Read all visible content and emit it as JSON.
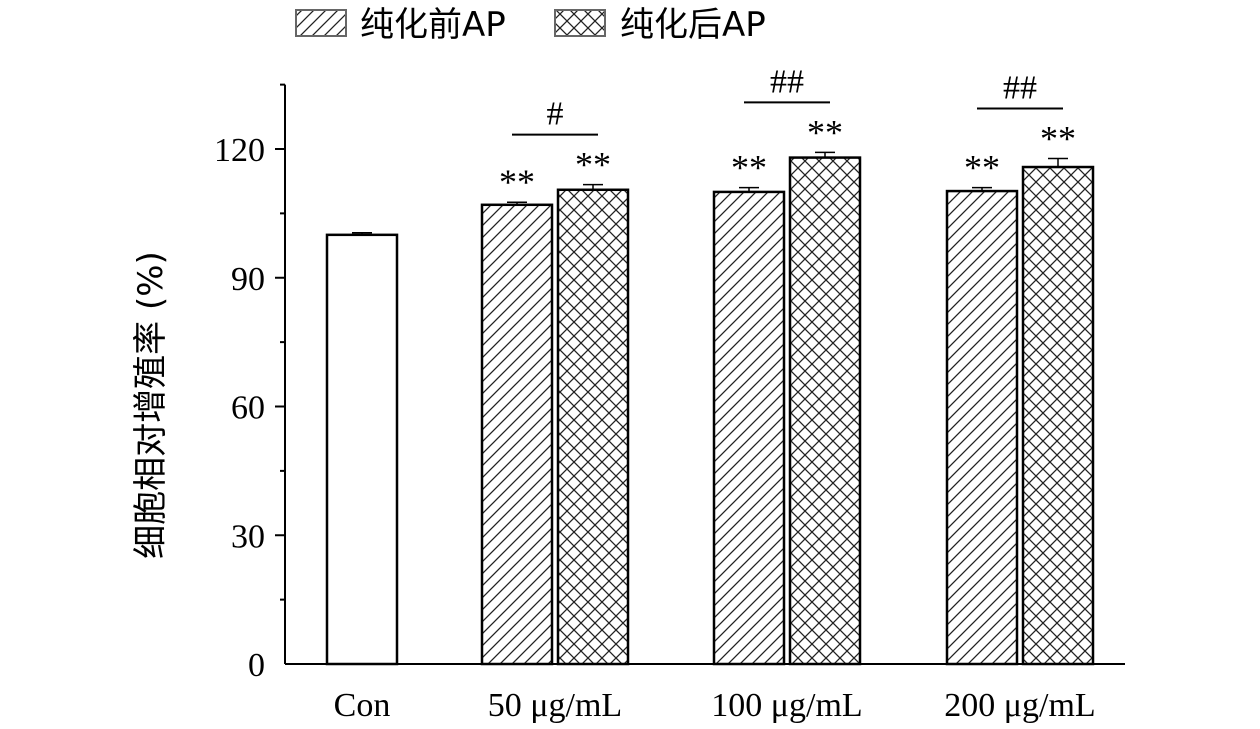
{
  "chart_data": {
    "type": "bar",
    "title": "",
    "xlabel": "",
    "ylabel": "细胞相对增殖率 (%)",
    "ylim": [
      0,
      135
    ],
    "yticks": [
      0,
      30,
      60,
      90,
      120
    ],
    "yticklabels": [
      "0",
      "30",
      "60",
      "90",
      "120"
    ],
    "categories": [
      "Con",
      "50 μg/mL",
      "100 μg/mL",
      "200 μg/mL"
    ],
    "legend_position": "top",
    "control": {
      "name": "Con",
      "value": 100,
      "error": 0.5
    },
    "series": [
      {
        "name": "纯化前AP",
        "pattern": "diagonal",
        "values": [
          null,
          107,
          110,
          110.2
        ],
        "errors": [
          null,
          0.6,
          1.0,
          0.8
        ],
        "labels": [
          null,
          "**",
          "**",
          "**"
        ]
      },
      {
        "name": "纯化后AP",
        "pattern": "crosshatch",
        "values": [
          null,
          110.5,
          118,
          115.8
        ],
        "errors": [
          null,
          1.2,
          1.2,
          2.0
        ],
        "labels": [
          null,
          "**",
          "**",
          "**"
        ]
      }
    ],
    "comparisons": [
      null,
      "#",
      "##",
      "##"
    ]
  }
}
